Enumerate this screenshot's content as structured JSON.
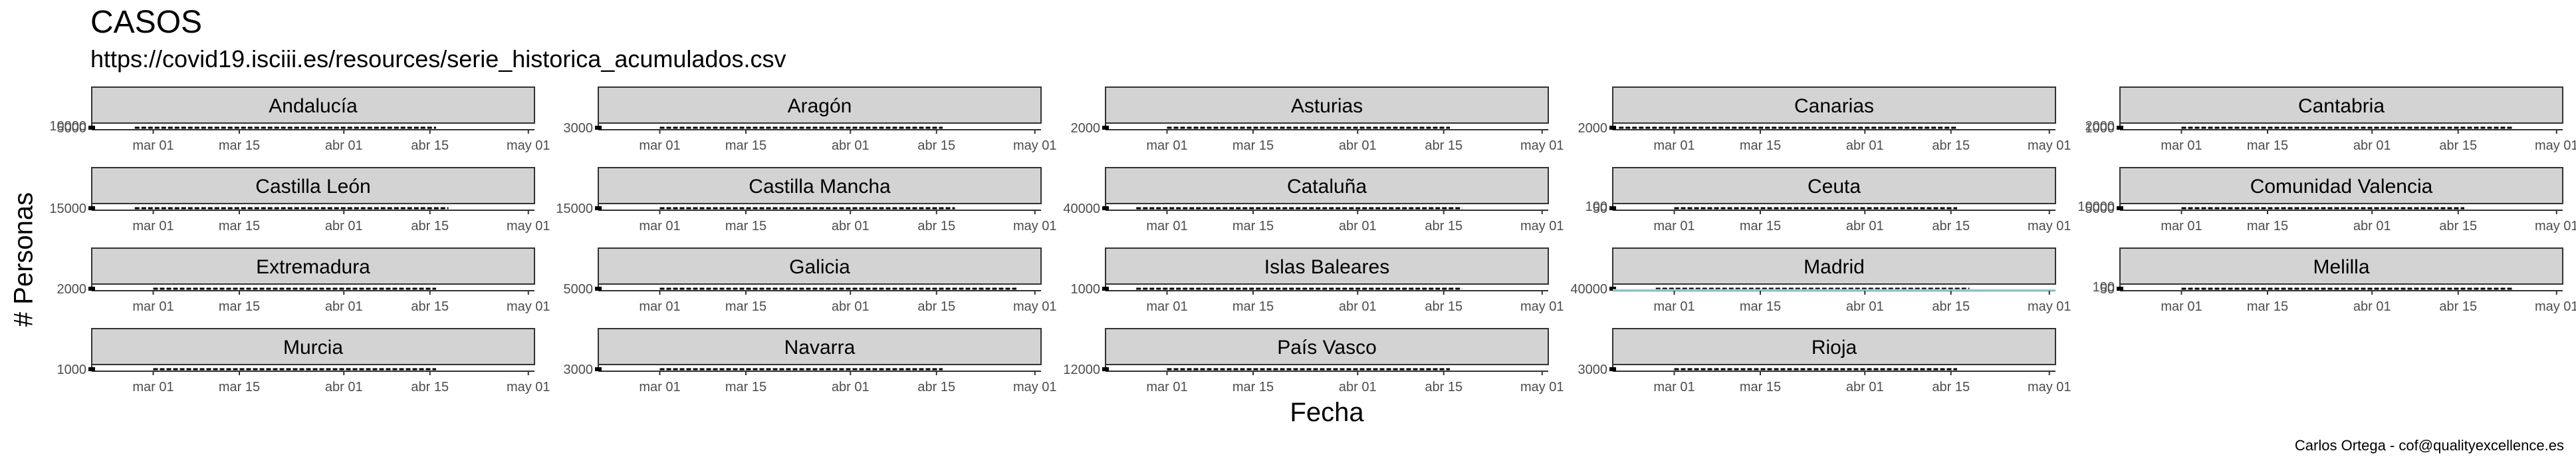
{
  "title": "CASOS",
  "subtitle": "https://covid19.isciii.es/resources/serie_historica_acumulados.csv",
  "ylabel": "# Personas",
  "xlabel": "Fecha",
  "caption": "Carlos Ortega - cof@qualityexcellence.es",
  "chart_data": {
    "type": "line",
    "layout": "facet_wrap 4x5, free y scales",
    "x_ticks": [
      "mar 01",
      "mar 15",
      "abr 01",
      "abr 15",
      "may 01"
    ],
    "x_domain": [
      "2020-02-20",
      "2020-05-02"
    ],
    "grid": false,
    "facets": [
      {
        "name": "Andalucía",
        "x_start": "2020-02-27",
        "x_end": "2020-04-16",
        "y_ticks": [
          "5000",
          "10000"
        ]
      },
      {
        "name": "Aragón",
        "x_start": "2020-03-01",
        "x_end": "2020-04-16",
        "y_ticks": [
          "3000"
        ]
      },
      {
        "name": "Asturias",
        "x_start": "2020-03-01",
        "x_end": "2020-04-16",
        "y_ticks": [
          "2000"
        ]
      },
      {
        "name": "Canarias",
        "x_start": "2020-02-21",
        "x_end": "2020-04-16",
        "y_ticks": [
          "2000"
        ]
      },
      {
        "name": "Cantabria",
        "x_start": "2020-03-01",
        "x_end": "2020-04-24",
        "y_ticks": [
          "1000",
          "2000"
        ]
      },
      {
        "name": "Castilla León",
        "x_start": "2020-02-27",
        "x_end": "2020-04-18",
        "y_ticks": [
          "15000"
        ]
      },
      {
        "name": "Castilla Mancha",
        "x_start": "2020-03-01",
        "x_end": "2020-04-18",
        "y_ticks": [
          "15000"
        ]
      },
      {
        "name": "Cataluña",
        "x_start": "2020-02-25",
        "x_end": "2020-04-18",
        "y_ticks": [
          "40000"
        ]
      },
      {
        "name": "Ceuta",
        "x_start": "2020-03-01",
        "x_end": "2020-04-16",
        "y_ticks": [
          "50",
          "100"
        ]
      },
      {
        "name": "Comunidad Valencia",
        "x_start": "2020-03-01",
        "x_end": "2020-04-16",
        "y_ticks": [
          "5000",
          "10000"
        ]
      },
      {
        "name": "Extremadura",
        "x_start": "2020-03-01",
        "x_end": "2020-04-16",
        "y_ticks": [
          "2000"
        ]
      },
      {
        "name": "Galicia",
        "x_start": "2020-03-01",
        "x_end": "2020-04-28",
        "y_ticks": [
          "5000"
        ]
      },
      {
        "name": "Islas Baleares",
        "x_start": "2020-02-25",
        "x_end": "2020-04-18",
        "y_ticks": [
          "1000"
        ]
      },
      {
        "name": "Madrid",
        "x_start": "2020-02-27",
        "x_end": "2020-04-18",
        "y_ticks": [
          "40000"
        ]
      },
      {
        "name": "Melilla",
        "x_start": "2020-03-01",
        "x_end": "2020-04-24",
        "y_ticks": [
          "50",
          "100"
        ]
      },
      {
        "name": "Murcia",
        "x_start": "2020-03-01",
        "x_end": "2020-04-16",
        "y_ticks": [
          "1000"
        ]
      },
      {
        "name": "Navarra",
        "x_start": "2020-03-01",
        "x_end": "2020-04-16",
        "y_ticks": [
          "3000"
        ]
      },
      {
        "name": "País Vasco",
        "x_start": "2020-03-01",
        "x_end": "2020-04-16",
        "y_ticks": [
          "12000"
        ]
      },
      {
        "name": "Rioja",
        "x_start": "2020-03-01",
        "x_end": "2020-04-16",
        "y_ticks": [
          "3000"
        ]
      }
    ]
  }
}
